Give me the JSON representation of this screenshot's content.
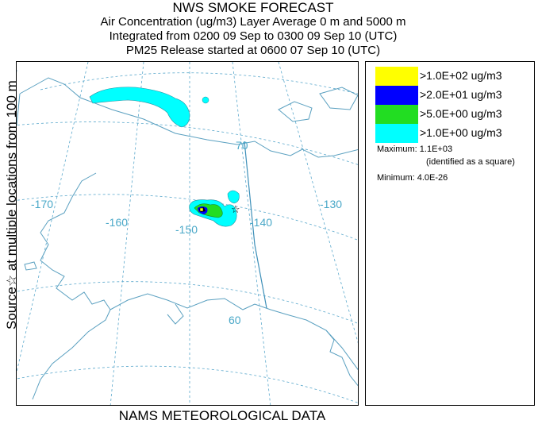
{
  "header": {
    "title": "NWS SMOKE FORECAST",
    "line2": "Air Concentration (ug/m3) Layer Average    0 m and  5000 m",
    "line3": "Integrated from 0200 09 Sep to 0300 09 Sep 10 (UTC)",
    "line4": "PM25 Release started at 0600 07 Sep 10 (UTC)"
  },
  "side_label": "Source☆  at multiple locations  from   100 m",
  "footer": "NAMS METEOROLOGICAL DATA",
  "map": {
    "longitude_labels": [
      "-170",
      "-160",
      "-150",
      "-140",
      "-130"
    ],
    "latitude_labels": [
      "70",
      "60"
    ],
    "colors": {
      "coast": "#5aa0c0",
      "grid": "#5aa8cc",
      "border": "#3d8fb8"
    }
  },
  "legend": {
    "entries": [
      {
        "label": ">1.0E+02 ug/m3",
        "color": "#ffff00"
      },
      {
        "label": ">2.0E+01 ug/m3",
        "color": "#0000ff"
      },
      {
        "label": ">5.0E+00 ug/m3",
        "color": "#22dd22"
      },
      {
        "label": ">1.0E+00 ug/m3",
        "color": "#00ffff"
      }
    ],
    "maximum": "Maximum: 1.1E+03",
    "maximum_note": "(identified as a square)",
    "minimum": "Minimum: 4.0E-26"
  }
}
